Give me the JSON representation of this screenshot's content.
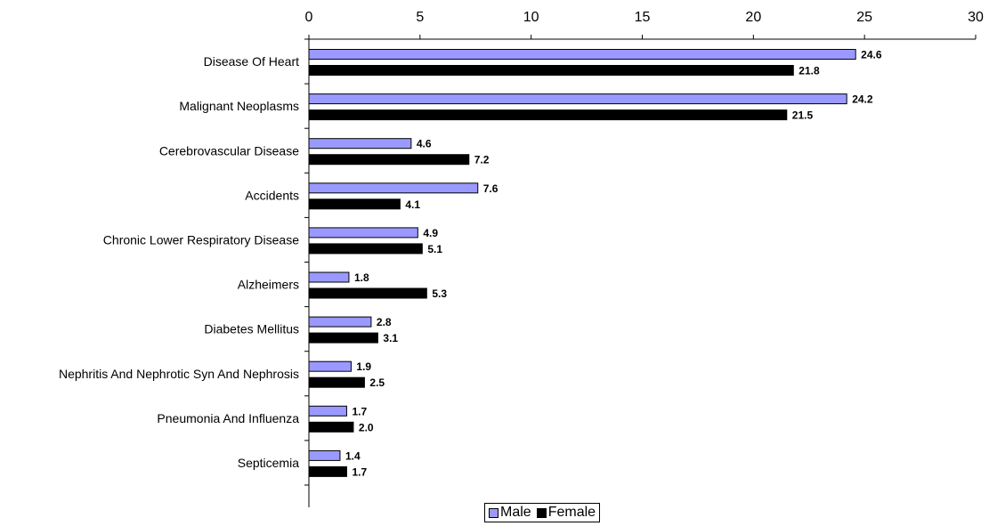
{
  "chart_data": {
    "type": "bar",
    "orientation": "horizontal",
    "categories": [
      "Disease Of Heart",
      "Malignant Neoplasms",
      "Cerebrovascular Disease",
      "Accidents",
      "Chronic Lower Respiratory Disease",
      "Alzheimers",
      "Diabetes Mellitus",
      "Nephritis And Nephrotic Syn And Nephrosis",
      "Pneumonia And Influenza",
      "Septicemia"
    ],
    "series": [
      {
        "name": "Male",
        "color": "#9999ff",
        "values": [
          24.6,
          24.2,
          4.6,
          7.6,
          4.9,
          1.8,
          2.8,
          1.9,
          1.7,
          1.4
        ],
        "labels": [
          "24.6",
          "24.2",
          "4.6",
          "7.6",
          "4.9",
          "1.8",
          "2.8",
          "1.9",
          "1.7",
          "1.4"
        ]
      },
      {
        "name": "Female",
        "color": "#000000",
        "values": [
          21.8,
          21.5,
          7.2,
          4.1,
          5.1,
          5.3,
          3.1,
          2.5,
          2.0,
          1.7
        ],
        "labels": [
          "21.8",
          "21.5",
          "7.2",
          "4.1",
          "5.1",
          "5.3",
          "3.1",
          "2.5",
          "2.0",
          "1.7"
        ]
      }
    ],
    "xlim": [
      0,
      30
    ],
    "xticks": [
      0,
      5,
      10,
      15,
      20,
      25,
      30
    ],
    "xtick_labels": [
      "0",
      "5",
      "10",
      "15",
      "20",
      "25",
      "30"
    ],
    "x_axis_position": "top",
    "grid": false,
    "legend_position": "bottom-center",
    "title": "",
    "xlabel": "",
    "ylabel": ""
  }
}
